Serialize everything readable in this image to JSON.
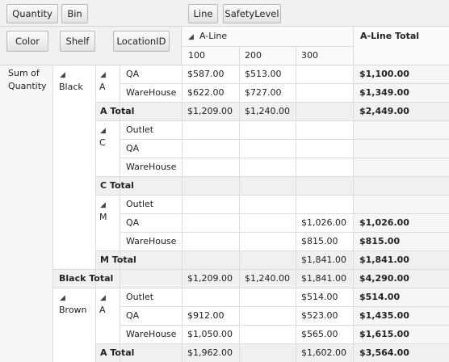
{
  "filter_fields": {
    "quantity": "Quantity",
    "bin": "Bin"
  },
  "column_fields": {
    "line": "Line",
    "safety_level": "SafetyLevel"
  },
  "row_fields": {
    "color": "Color",
    "shelf": "Shelf",
    "location": "LocationID"
  },
  "column_headers": {
    "group": "A-Line",
    "total": "A-Line Total",
    "sub": [
      "100",
      "200",
      "300"
    ]
  },
  "data_label": "Sum of Quantity",
  "rows": {
    "black": "Black",
    "brown": "Brown",
    "shelf_a": "A",
    "shelf_c": "C",
    "shelf_m": "M",
    "a_total": "A Total",
    "c_total": "C Total",
    "m_total": "M Total",
    "black_total": "Black Total",
    "qa": "QA",
    "warehouse": "WareHouse",
    "outlet": "Outlet"
  },
  "values": {
    "black_a_qa": [
      "$587.00",
      "$513.00",
      "",
      "$1,100.00"
    ],
    "black_a_wh": [
      "$622.00",
      "$727.00",
      "",
      "$1,349.00"
    ],
    "black_a_total": [
      "$1,209.00",
      "$1,240.00",
      "",
      "$2,449.00"
    ],
    "black_m_qa": [
      "",
      "",
      "$1,026.00",
      "$1,026.00"
    ],
    "black_m_wh": [
      "",
      "",
      "$815.00",
      "$815.00"
    ],
    "black_m_total": [
      "",
      "",
      "$1,841.00",
      "$1,841.00"
    ],
    "black_total": [
      "$1,209.00",
      "$1,240.00",
      "$1,841.00",
      "$4,290.00"
    ],
    "brown_a_outlet": [
      "",
      "",
      "$514.00",
      "$514.00"
    ],
    "brown_a_qa": [
      "$912.00",
      "",
      "$523.00",
      "$1,435.00"
    ],
    "brown_a_wh": [
      "$1,050.00",
      "",
      "$565.00",
      "$1,615.00"
    ],
    "brown_a_total": [
      "$1,962.00",
      "",
      "$1,602.00",
      "$3,564.00"
    ]
  },
  "icons": {
    "expanded": "collapse-triangle-icon"
  },
  "colors": {
    "subtotal_bg": "#f0f0f0",
    "header_bg": "#f1f1f1",
    "grid": "#dcdcdc"
  }
}
